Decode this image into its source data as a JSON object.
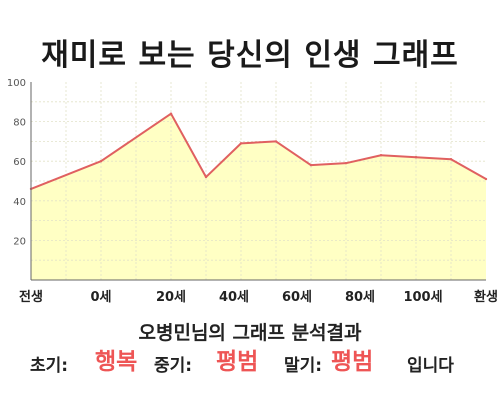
{
  "title": "재미로 보는 당신의 인생 그래프",
  "chart_data": {
    "type": "area",
    "x": [
      0,
      10,
      20,
      25,
      30,
      35,
      40,
      45,
      50,
      55,
      60,
      65
    ],
    "values": [
      46,
      60,
      84,
      52,
      69,
      70,
      58,
      59,
      63,
      62,
      61,
      51
    ],
    "xlim": [
      0,
      65
    ],
    "ylim": [
      0,
      100
    ],
    "yticks": [
      20,
      40,
      60,
      80,
      100
    ],
    "xtick_labels": [
      {
        "x": 0,
        "label": "전생"
      },
      {
        "x": 10,
        "label": "0세"
      },
      {
        "x": 20,
        "label": "20세"
      },
      {
        "x": 29,
        "label": "40세"
      },
      {
        "x": 38,
        "label": "60세"
      },
      {
        "x": 47,
        "label": "80세"
      },
      {
        "x": 56,
        "label": "100세"
      },
      {
        "x": 65,
        "label": "환생"
      }
    ],
    "grid": true,
    "line_color": "#e06060",
    "fill_color": "#ffffc4"
  },
  "result": {
    "heading": "오병민님의 그래프 분석결과",
    "early_label": "초기:",
    "early_value": "행복",
    "middle_label": "중기:",
    "middle_value": "평범",
    "late_label": "말기:",
    "late_value": "평범",
    "suffix": "입니다"
  }
}
